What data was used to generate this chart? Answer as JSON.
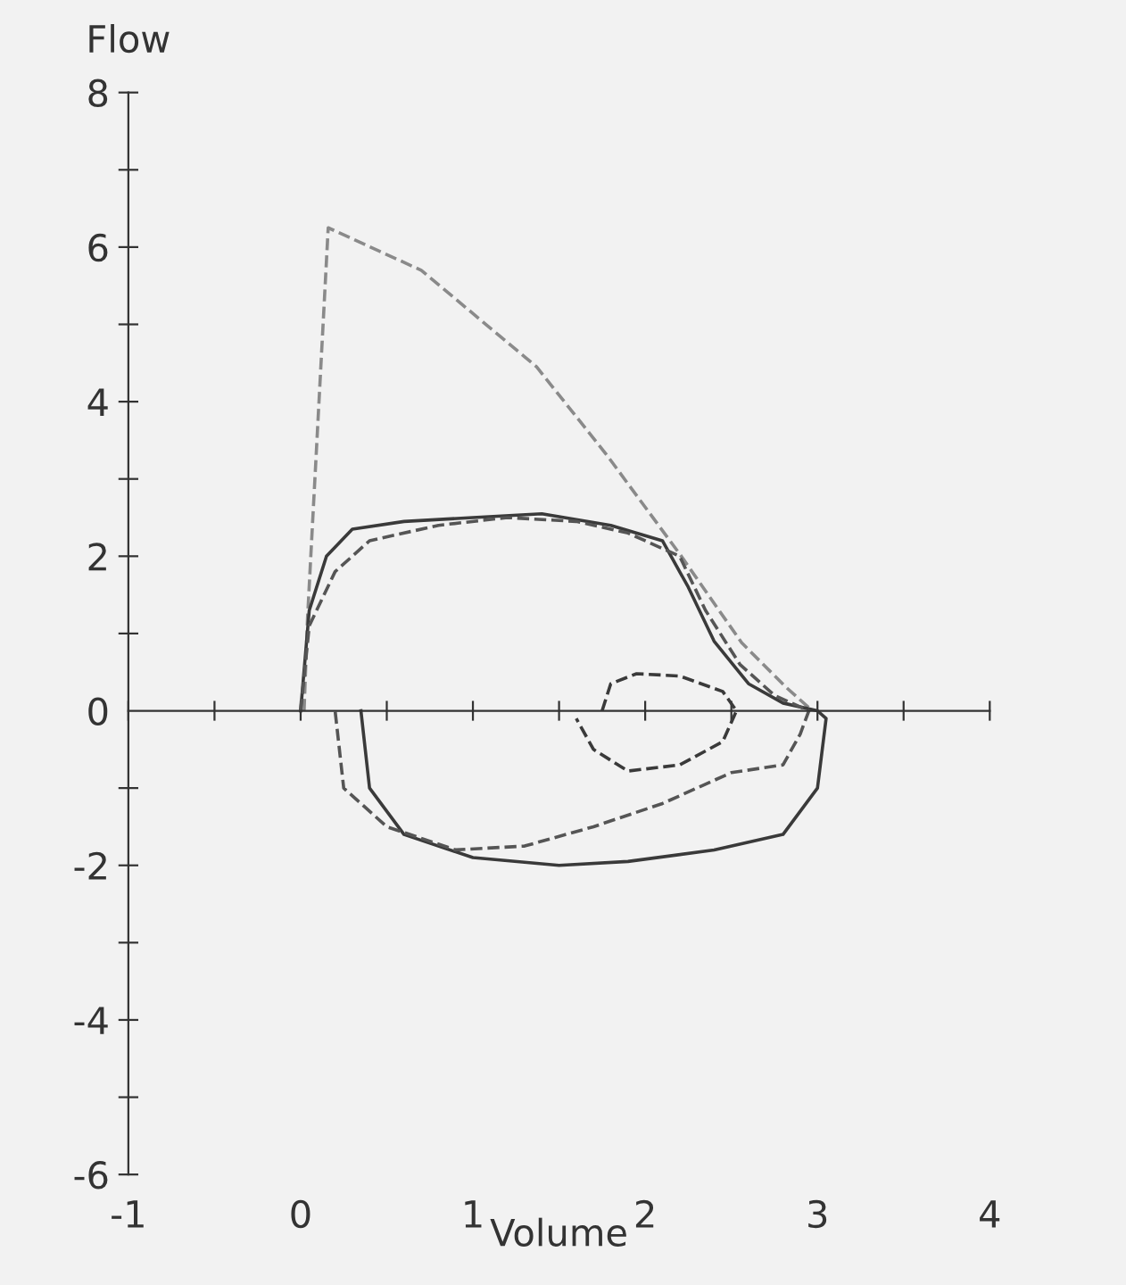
{
  "chart_data": {
    "type": "line",
    "xlabel": "Volume",
    "ylabel": "Flow",
    "xlim": [
      -1,
      4
    ],
    "ylim": [
      -6,
      8
    ],
    "xticks": [
      {
        "value": -1,
        "label": "-1"
      },
      {
        "value": -0.5,
        "label": null
      },
      0,
      {
        "value": 0.5,
        "label": null
      },
      1,
      {
        "value": 1.5,
        "label": null
      },
      2,
      {
        "value": 2.5,
        "label": null
      },
      3,
      {
        "value": 3.5,
        "label": null
      },
      4
    ],
    "yticks": [
      {
        "value": -6,
        "label": "-6"
      },
      {
        "value": -5,
        "label": null
      },
      {
        "value": -4,
        "label": "-4"
      },
      {
        "value": -3,
        "label": null
      },
      {
        "value": -2,
        "label": "-2"
      },
      {
        "value": -1,
        "label": null
      },
      0,
      {
        "value": 1,
        "label": null
      },
      2,
      {
        "value": 3,
        "label": null
      },
      4,
      {
        "value": 5,
        "label": null
      },
      6,
      {
        "value": 7,
        "label": null
      },
      8
    ],
    "legend": false,
    "series": [
      {
        "color": "#8a8a8a",
        "line_style": "dashed",
        "x": [
          0.02,
          0.04,
          0.16,
          0.7,
          1.37,
          1.78,
          2.2,
          2.56,
          2.82,
          2.97
        ],
        "values": [
          0,
          1.2,
          6.25,
          5.7,
          4.45,
          3.3,
          2.03,
          0.88,
          0.3,
          0
        ]
      },
      {
        "color": "#3a3a3a",
        "line_style": "solid",
        "x": [
          0,
          0.05,
          0.15,
          0.3,
          0.6,
          1.0,
          1.4,
          1.8,
          2.1,
          2.25,
          2.4,
          2.6,
          2.8,
          3.0,
          3.05,
          3.0,
          2.8,
          2.4,
          1.9,
          1.5,
          1.0,
          0.6,
          0.4,
          0.35
        ],
        "values": [
          0,
          1.3,
          2.0,
          2.35,
          2.45,
          2.5,
          2.55,
          2.4,
          2.2,
          1.6,
          0.9,
          0.35,
          0.1,
          0,
          -0.1,
          -1.0,
          -1.6,
          -1.8,
          -1.95,
          -2.0,
          -1.9,
          -1.6,
          -1.0,
          0
        ]
      },
      {
        "color": "#555555",
        "line_style": "dashed",
        "x": [
          0,
          0.05,
          0.2,
          0.4,
          0.8,
          1.2,
          1.6,
          1.9,
          2.2,
          2.35,
          2.55,
          2.75,
          2.95,
          2.9,
          2.8,
          2.5,
          2.1,
          1.7,
          1.3,
          0.9,
          0.5,
          0.25,
          0.2
        ],
        "values": [
          0,
          1.1,
          1.8,
          2.2,
          2.4,
          2.5,
          2.45,
          2.3,
          2.0,
          1.3,
          0.6,
          0.2,
          0,
          -0.3,
          -0.7,
          -0.8,
          -1.2,
          -1.5,
          -1.75,
          -1.8,
          -1.5,
          -1.0,
          0
        ]
      },
      {
        "color": "#3a3a3a",
        "line_style": "dashed",
        "x": [
          1.75,
          1.8,
          1.95,
          2.2,
          2.45,
          2.53,
          2.45,
          2.2,
          1.9,
          1.7,
          1.6
        ],
        "values": [
          0,
          0.35,
          0.48,
          0.45,
          0.25,
          0,
          -0.4,
          -0.7,
          -0.78,
          -0.5,
          -0.1
        ]
      }
    ]
  }
}
